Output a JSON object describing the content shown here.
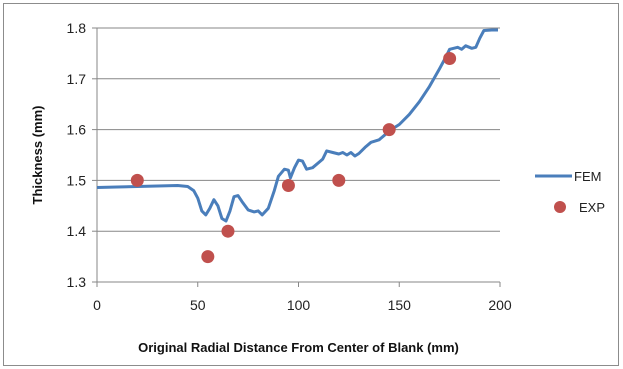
{
  "chart_data": {
    "type": "line",
    "title": "",
    "xlabel": "Original Radial Distance From Center of Blank (mm)",
    "ylabel": "Thickness (mm)",
    "xlim": [
      0,
      200
    ],
    "ylim": [
      1.3,
      1.8
    ],
    "x_ticks": [
      0,
      50,
      100,
      150,
      200
    ],
    "y_ticks": [
      1.3,
      1.4,
      1.5,
      1.6,
      1.7,
      1.8
    ],
    "x_tick_labels": [
      "0",
      "50",
      "100",
      "150",
      "200"
    ],
    "y_tick_labels": [
      "1.3",
      "1.4",
      "1.5",
      "1.6",
      "1.7",
      "1.8"
    ],
    "grid": "horizontal",
    "legend_position": "right",
    "series": [
      {
        "name": "FEM",
        "kind": "line",
        "color": "#4a7ebb",
        "points": [
          [
            0,
            1.486
          ],
          [
            10,
            1.487
          ],
          [
            20,
            1.488
          ],
          [
            30,
            1.489
          ],
          [
            40,
            1.49
          ],
          [
            45,
            1.488
          ],
          [
            48,
            1.48
          ],
          [
            50,
            1.465
          ],
          [
            52,
            1.44
          ],
          [
            54,
            1.432
          ],
          [
            56,
            1.445
          ],
          [
            58,
            1.462
          ],
          [
            60,
            1.45
          ],
          [
            62,
            1.425
          ],
          [
            64,
            1.42
          ],
          [
            66,
            1.44
          ],
          [
            68,
            1.468
          ],
          [
            70,
            1.47
          ],
          [
            72,
            1.458
          ],
          [
            75,
            1.442
          ],
          [
            78,
            1.438
          ],
          [
            80,
            1.44
          ],
          [
            82,
            1.432
          ],
          [
            85,
            1.445
          ],
          [
            88,
            1.48
          ],
          [
            90,
            1.508
          ],
          [
            93,
            1.522
          ],
          [
            95,
            1.52
          ],
          [
            96,
            1.505
          ],
          [
            98,
            1.525
          ],
          [
            100,
            1.54
          ],
          [
            102,
            1.538
          ],
          [
            104,
            1.522
          ],
          [
            107,
            1.525
          ],
          [
            110,
            1.535
          ],
          [
            112,
            1.542
          ],
          [
            114,
            1.558
          ],
          [
            117,
            1.555
          ],
          [
            120,
            1.552
          ],
          [
            122,
            1.555
          ],
          [
            124,
            1.55
          ],
          [
            126,
            1.555
          ],
          [
            128,
            1.548
          ],
          [
            130,
            1.553
          ],
          [
            133,
            1.565
          ],
          [
            136,
            1.575
          ],
          [
            140,
            1.58
          ],
          [
            143,
            1.59
          ],
          [
            146,
            1.6
          ],
          [
            150,
            1.61
          ],
          [
            155,
            1.63
          ],
          [
            160,
            1.655
          ],
          [
            165,
            1.685
          ],
          [
            170,
            1.72
          ],
          [
            173,
            1.742
          ],
          [
            175,
            1.758
          ],
          [
            177,
            1.76
          ],
          [
            179,
            1.762
          ],
          [
            181,
            1.758
          ],
          [
            183,
            1.765
          ],
          [
            186,
            1.76
          ],
          [
            188,
            1.762
          ],
          [
            190,
            1.78
          ],
          [
            192,
            1.795
          ],
          [
            196,
            1.796
          ],
          [
            199,
            1.796
          ]
        ]
      },
      {
        "name": "EXP",
        "kind": "scatter",
        "color": "#c0504d",
        "points": [
          [
            20,
            1.5
          ],
          [
            55,
            1.35
          ],
          [
            65,
            1.4
          ],
          [
            95,
            1.49
          ],
          [
            120,
            1.5
          ],
          [
            145,
            1.6
          ],
          [
            175,
            1.74
          ]
        ]
      }
    ]
  }
}
